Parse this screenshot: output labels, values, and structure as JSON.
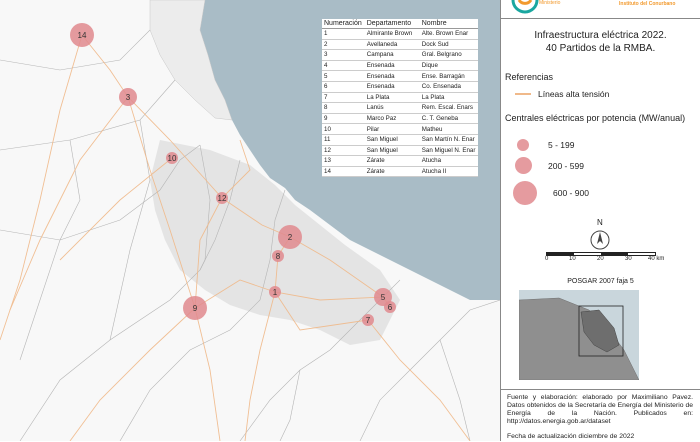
{
  "header": {
    "logo_text_top": "Ministerio",
    "logo_text_bottom": "Instituto del Conurbano"
  },
  "title": {
    "line1": "Infraestructura eléctrica 2022.",
    "line2": "40 Partidos de la RMBA."
  },
  "legend": {
    "section_label": "Referencias",
    "lines_label": "Líneas alta tensión",
    "lines_color": "#f0b98a",
    "plants_label": "Centrales eléctricas por potencia (MW/anual)",
    "size_classes": [
      "5 - 199",
      "200 - 599",
      "600 - 900"
    ],
    "plant_color": "#e08a8e"
  },
  "north_arrow": {
    "label": "N"
  },
  "scale_bar": {
    "ticks": [
      "0",
      "10",
      "20",
      "30",
      "40 km"
    ]
  },
  "projection": "POSGAR 2007 faja 5",
  "table": {
    "headers": [
      "Numeración",
      "Departamento",
      "Nombre"
    ],
    "rows": [
      [
        "1",
        "Almirante Brown",
        "Alte. Brown Enar"
      ],
      [
        "2",
        "Avellaneda",
        "Dock Sud"
      ],
      [
        "3",
        "Campana",
        "Gral. Belgrano"
      ],
      [
        "4",
        "Ensenada",
        "Dique"
      ],
      [
        "5",
        "Ensenada",
        "Ense. Barragán"
      ],
      [
        "6",
        "Ensenada",
        "Co. Ensenada"
      ],
      [
        "7",
        "La Plata",
        "La Plata"
      ],
      [
        "8",
        "Lanús",
        "Rem. Escal. Enars"
      ],
      [
        "9",
        "Marco Paz",
        "C. T. Geneba"
      ],
      [
        "10",
        "Pilar",
        "Matheu"
      ],
      [
        "11",
        "San Miguel",
        "San Martín N. Enar"
      ],
      [
        "12",
        "San Miguel",
        "San Miguel N. Enar"
      ],
      [
        "13",
        "Zárate",
        "Atucha"
      ],
      [
        "14",
        "Zárate",
        "Atucha II"
      ]
    ]
  },
  "plants": [
    {
      "num": "14",
      "size_class": 2
    },
    {
      "num": "3",
      "size_class": 1
    },
    {
      "num": "10",
      "size_class": 0
    },
    {
      "num": "12",
      "size_class": 0
    },
    {
      "num": "2",
      "size_class": 2
    },
    {
      "num": "8",
      "size_class": 0
    },
    {
      "num": "1",
      "size_class": 0
    },
    {
      "num": "9",
      "size_class": 2
    },
    {
      "num": "5",
      "size_class": 1
    },
    {
      "num": "6",
      "size_class": 0
    },
    {
      "num": "7",
      "size_class": 0
    }
  ],
  "footer": {
    "credits": "Fuente y elaboración: elaborado por Maximiliano Pavez. Datos obtenidos de la Secretaría de Energía del Ministerio de Energía de la Nación. Publicados en: http://datos.energia.gob.ar/dataset",
    "date": "Fecha de actualización diciembre de 2022"
  },
  "colors": {
    "river": "#a9bcc6",
    "land": "#f7f7f7",
    "urban": "#d9d9d9",
    "partido_border": "#b5b5b5"
  }
}
